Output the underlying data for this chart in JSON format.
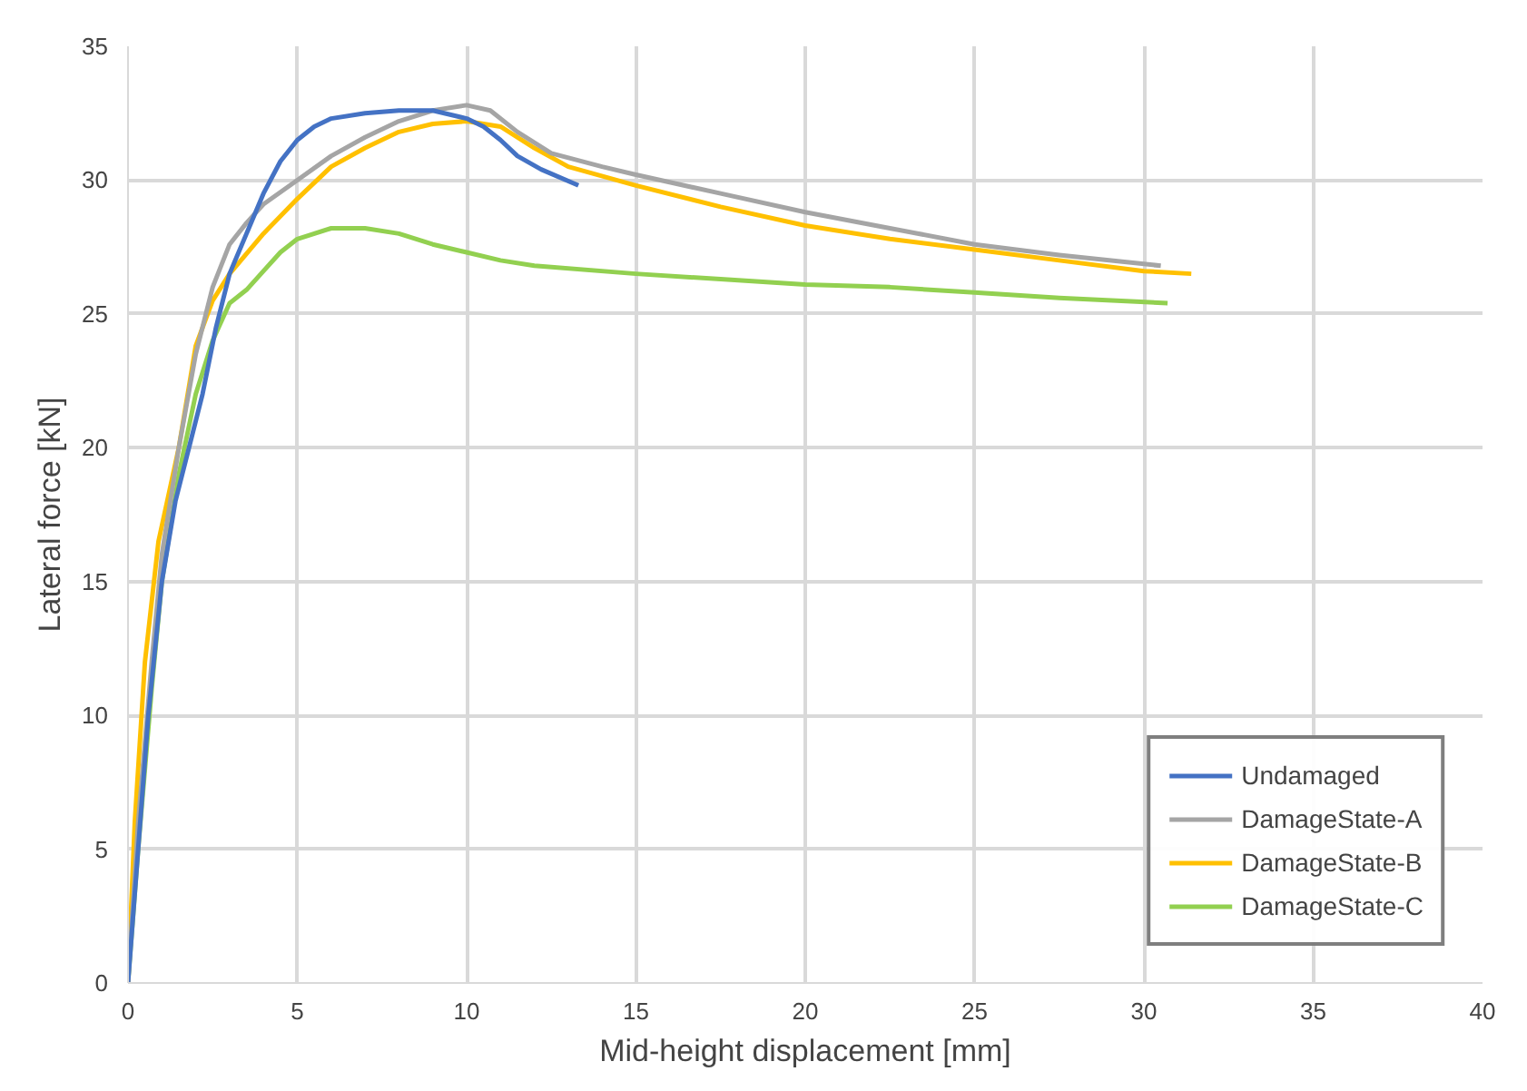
{
  "chart_data": {
    "type": "line",
    "xlabel": "Mid-height displacement [mm]",
    "ylabel": "Lateral force [kN]",
    "xlim": [
      0,
      40
    ],
    "xticks": [
      0,
      5,
      10,
      15,
      20,
      25,
      30,
      35,
      40
    ],
    "ylim": [
      0,
      35
    ],
    "yticks": [
      0,
      5,
      10,
      15,
      20,
      25,
      30,
      35
    ],
    "grid": true,
    "legend": "bottom right",
    "marker": "none",
    "line_style": "solid",
    "series": [
      {
        "name": "Undamaged",
        "color": "#4472c4",
        "x": [
          0,
          0.3,
          0.6,
          1,
          1.4,
          1.8,
          2.2,
          2.6,
          3,
          3.5,
          4,
          4.5,
          5,
          5.5,
          6,
          7,
          8,
          9,
          10,
          10.5,
          11,
          11.5,
          12.2,
          13.3
        ],
        "values": [
          0,
          5,
          10,
          15,
          18,
          20,
          22,
          24.5,
          26.5,
          28,
          29.5,
          30.7,
          31.5,
          32,
          32.3,
          32.5,
          32.6,
          32.6,
          32.3,
          32,
          31.5,
          30.9,
          30.4,
          29.8
        ]
      },
      {
        "name": "DamageState-A",
        "color": "#a5a5a5",
        "x": [
          0,
          0.3,
          0.7,
          1,
          1.5,
          2,
          2.5,
          3,
          3.5,
          4,
          5,
          6,
          7,
          8,
          9,
          10,
          10.7,
          11.5,
          12.5,
          14,
          15,
          17.5,
          20,
          22.5,
          25,
          27.5,
          30.5
        ],
        "values": [
          0,
          6,
          12,
          16,
          20,
          23.5,
          26,
          27.6,
          28.4,
          29.1,
          30,
          30.9,
          31.6,
          32.2,
          32.6,
          32.8,
          32.6,
          31.8,
          31,
          30.5,
          30.2,
          29.5,
          28.8,
          28.2,
          27.6,
          27.2,
          26.8
        ]
      },
      {
        "name": "DamageState-B",
        "color": "#ffc000",
        "x": [
          0,
          0.2,
          0.5,
          0.9,
          1.5,
          2,
          2.5,
          3,
          4,
          5,
          6,
          7,
          8,
          9,
          10,
          11,
          12,
          13,
          15,
          17.5,
          20,
          22.5,
          25,
          27.5,
          30,
          31.4
        ],
        "values": [
          0,
          6,
          12,
          16.5,
          20,
          23.8,
          25.5,
          26.5,
          28,
          29.3,
          30.5,
          31.2,
          31.8,
          32.1,
          32.2,
          32,
          31.2,
          30.5,
          29.8,
          29,
          28.3,
          27.8,
          27.4,
          27,
          26.6,
          26.5
        ]
      },
      {
        "name": "DamageState-C",
        "color": "#92d050",
        "x": [
          0,
          0.3,
          0.7,
          1,
          1.5,
          2,
          2.5,
          3,
          3.5,
          4,
          4.5,
          5,
          6,
          7,
          8,
          9,
          10,
          11,
          12,
          15,
          17.5,
          20,
          22.5,
          25,
          27.5,
          30.7
        ],
        "values": [
          0,
          5,
          11,
          15,
          19,
          22,
          24,
          25.4,
          25.9,
          26.6,
          27.3,
          27.8,
          28.2,
          28.2,
          28,
          27.6,
          27.3,
          27,
          26.8,
          26.5,
          26.3,
          26.1,
          26,
          25.8,
          25.6,
          25.4
        ]
      }
    ]
  }
}
